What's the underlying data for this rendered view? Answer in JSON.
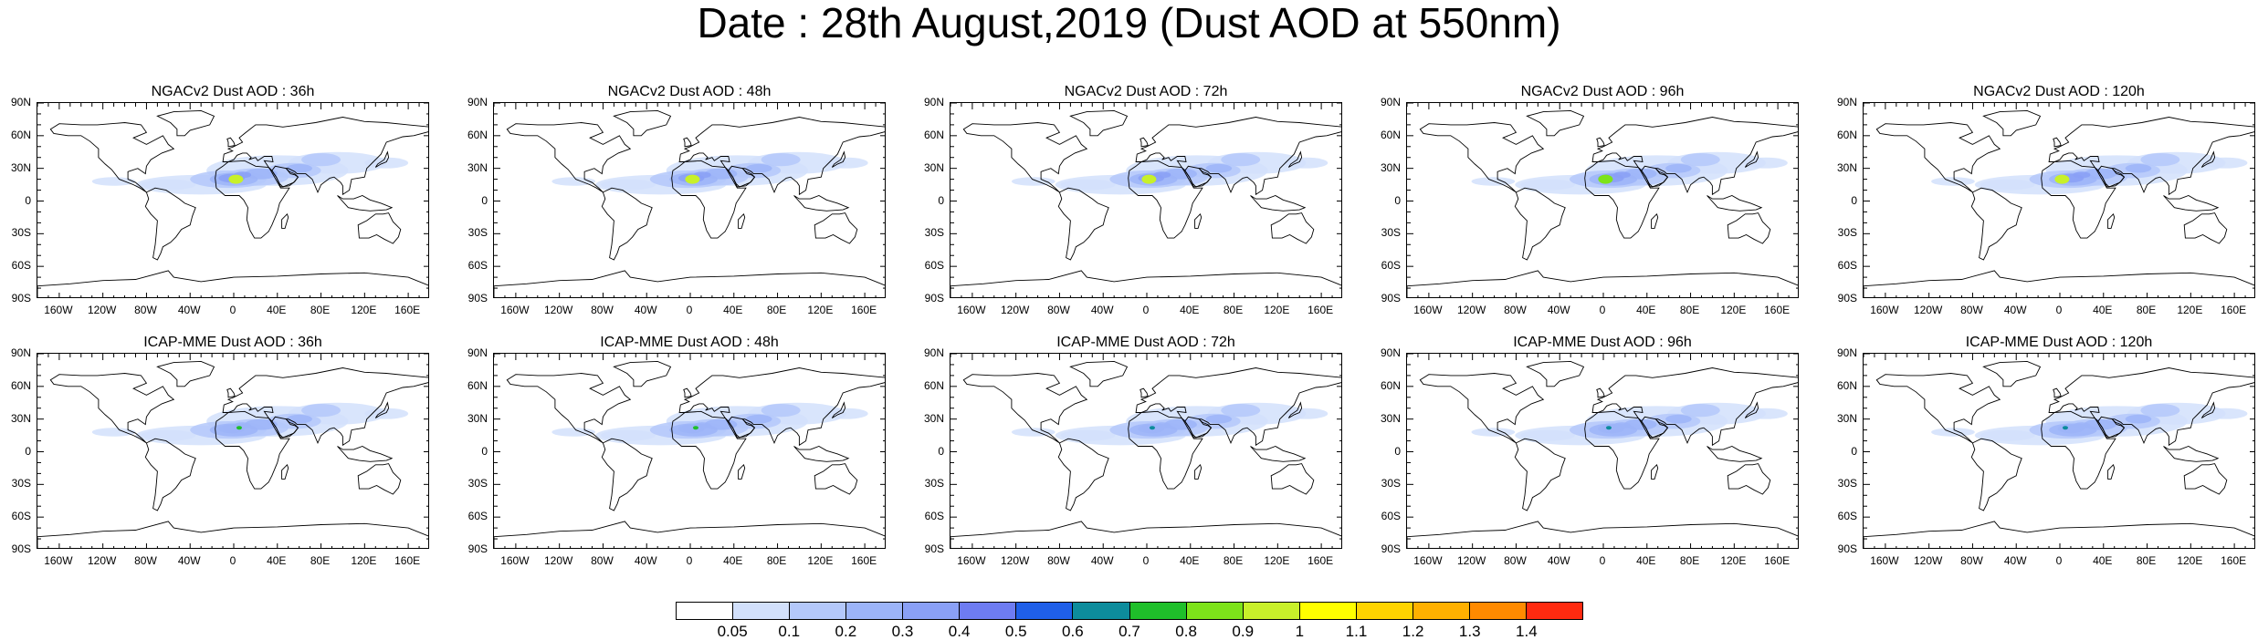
{
  "title": "Date : 28th August,2019 (Dust AOD at 550nm)",
  "lat_ticks": [
    "90N",
    "60N",
    "30N",
    "0",
    "30S",
    "60S",
    "90S"
  ],
  "lon_ticks": [
    "160W",
    "120W",
    "80W",
    "40W",
    "0",
    "40E",
    "80E",
    "120E",
    "160E"
  ],
  "panels": [
    {
      "title": "NGACv2 Dust AOD : 36h",
      "peak": 0.9
    },
    {
      "title": "NGACv2 Dust AOD : 48h",
      "peak": 0.9
    },
    {
      "title": "NGACv2 Dust AOD : 72h",
      "peak": 0.9
    },
    {
      "title": "NGACv2 Dust AOD : 96h",
      "peak": 0.8
    },
    {
      "title": "NGACv2 Dust AOD : 120h",
      "peak": 0.9
    },
    {
      "title": "ICAP-MME Dust AOD : 36h",
      "peak": 0.7
    },
    {
      "title": "ICAP-MME Dust AOD : 48h",
      "peak": 0.7
    },
    {
      "title": "ICAP-MME Dust AOD : 72h",
      "peak": 0.6
    },
    {
      "title": "ICAP-MME Dust AOD : 96h",
      "peak": 0.6
    },
    {
      "title": "ICAP-MME Dust AOD : 120h",
      "peak": 0.6
    }
  ],
  "colorbar": {
    "labels": [
      "0.05",
      "0.1",
      "0.2",
      "0.3",
      "0.4",
      "0.5",
      "0.6",
      "0.7",
      "0.8",
      "0.9",
      "1",
      "1.1",
      "1.2",
      "1.3",
      "1.4"
    ],
    "colors": [
      "#ffffff",
      "#d2e0fb",
      "#b4c8fa",
      "#9cb4f8",
      "#8aa0f6",
      "#6e7cf2",
      "#1f5fe8",
      "#0d8c9c",
      "#1fbf2a",
      "#7de31a",
      "#c8f02a",
      "#ffff00",
      "#ffd400",
      "#ffb000",
      "#ff8a00",
      "#ff2a10"
    ]
  }
}
